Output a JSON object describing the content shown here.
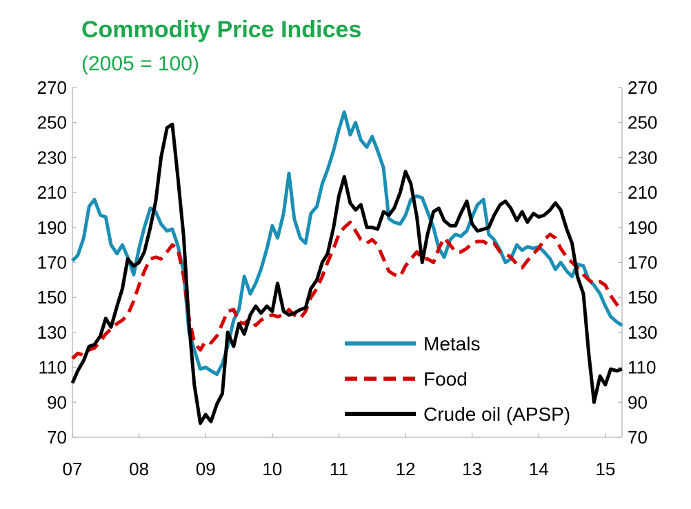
{
  "chart_data": {
    "type": "line",
    "title": "Commodity Price Indices",
    "subtitle": "(2005 = 100)",
    "ylim": [
      70,
      270
    ],
    "yticks": [
      70,
      90,
      110,
      130,
      150,
      170,
      190,
      210,
      230,
      250,
      270
    ],
    "xlim": [
      2007.0,
      2015.25
    ],
    "xticks": [
      {
        "value": 2007,
        "label": "07"
      },
      {
        "value": 2008,
        "label": "08"
      },
      {
        "value": 2009,
        "label": "09"
      },
      {
        "value": 2010,
        "label": "10"
      },
      {
        "value": 2011,
        "label": "11"
      },
      {
        "value": 2012,
        "label": "12"
      },
      {
        "value": 2013,
        "label": "13"
      },
      {
        "value": 2014,
        "label": "14"
      },
      {
        "value": 2015,
        "label": "15"
      }
    ],
    "dual_axis": true,
    "grid": false,
    "legend_position": "bottom-right",
    "series": [
      {
        "name": "Metals",
        "color": "#1b8fb5",
        "style": "solid",
        "x": [
          2007.0,
          2007.08,
          2007.17,
          2007.25,
          2007.33,
          2007.42,
          2007.5,
          2007.58,
          2007.67,
          2007.75,
          2007.83,
          2007.92,
          2008.0,
          2008.08,
          2008.17,
          2008.25,
          2008.33,
          2008.42,
          2008.5,
          2008.58,
          2008.67,
          2008.75,
          2008.83,
          2008.92,
          2009.0,
          2009.08,
          2009.17,
          2009.25,
          2009.33,
          2009.42,
          2009.5,
          2009.58,
          2009.67,
          2009.75,
          2009.83,
          2009.92,
          2010.0,
          2010.08,
          2010.17,
          2010.25,
          2010.33,
          2010.42,
          2010.5,
          2010.58,
          2010.67,
          2010.75,
          2010.83,
          2010.92,
          2011.0,
          2011.08,
          2011.17,
          2011.25,
          2011.33,
          2011.42,
          2011.5,
          2011.58,
          2011.67,
          2011.75,
          2011.83,
          2011.92,
          2012.0,
          2012.08,
          2012.17,
          2012.25,
          2012.33,
          2012.42,
          2012.5,
          2012.58,
          2012.67,
          2012.75,
          2012.83,
          2012.92,
          2013.0,
          2013.08,
          2013.17,
          2013.25,
          2013.33,
          2013.42,
          2013.5,
          2013.58,
          2013.67,
          2013.75,
          2013.83,
          2013.92,
          2014.0,
          2014.08,
          2014.17,
          2014.25,
          2014.33,
          2014.42,
          2014.5,
          2014.58,
          2014.67,
          2014.75,
          2014.83,
          2014.92,
          2015.0,
          2015.08,
          2015.17,
          2015.25
        ],
        "values": [
          171,
          174,
          184,
          202,
          206,
          197,
          196,
          180,
          175,
          180,
          173,
          163,
          178,
          190,
          201,
          199,
          192,
          188,
          189,
          180,
          165,
          130,
          120,
          109,
          110,
          108,
          106,
          112,
          122,
          137,
          143,
          162,
          152,
          158,
          166,
          178,
          191,
          184,
          198,
          221,
          195,
          184,
          181,
          198,
          202,
          215,
          223,
          234,
          246,
          256,
          243,
          250,
          240,
          236,
          242,
          234,
          224,
          195,
          193,
          192,
          197,
          206,
          208,
          207,
          199,
          190,
          178,
          173,
          183,
          186,
          185,
          188,
          196,
          203,
          206,
          186,
          183,
          177,
          170,
          172,
          180,
          177,
          179,
          178,
          179,
          176,
          172,
          166,
          170,
          165,
          162,
          169,
          168,
          160,
          157,
          152,
          145,
          139,
          136,
          134
        ]
      },
      {
        "name": "Food",
        "color": "#d40000",
        "style": "dashed",
        "x": [
          2007.0,
          2007.08,
          2007.17,
          2007.25,
          2007.33,
          2007.42,
          2007.5,
          2007.58,
          2007.67,
          2007.75,
          2007.83,
          2007.92,
          2008.0,
          2008.08,
          2008.17,
          2008.25,
          2008.33,
          2008.42,
          2008.5,
          2008.58,
          2008.67,
          2008.75,
          2008.83,
          2008.92,
          2009.0,
          2009.08,
          2009.17,
          2009.25,
          2009.33,
          2009.42,
          2009.5,
          2009.58,
          2009.67,
          2009.75,
          2009.83,
          2009.92,
          2010.0,
          2010.08,
          2010.17,
          2010.25,
          2010.33,
          2010.42,
          2010.5,
          2010.58,
          2010.67,
          2010.75,
          2010.83,
          2010.92,
          2011.0,
          2011.08,
          2011.17,
          2011.25,
          2011.33,
          2011.42,
          2011.5,
          2011.58,
          2011.67,
          2011.75,
          2011.83,
          2011.92,
          2012.0,
          2012.08,
          2012.17,
          2012.25,
          2012.33,
          2012.42,
          2012.5,
          2012.58,
          2012.67,
          2012.75,
          2012.83,
          2012.92,
          2013.0,
          2013.08,
          2013.17,
          2013.25,
          2013.33,
          2013.42,
          2013.5,
          2013.58,
          2013.67,
          2013.75,
          2013.83,
          2013.92,
          2014.0,
          2014.08,
          2014.17,
          2014.25,
          2014.33,
          2014.42,
          2014.5,
          2014.58,
          2014.67,
          2014.75,
          2014.83,
          2014.92,
          2015.0,
          2015.08,
          2015.17,
          2015.25
        ],
        "values": [
          115,
          118,
          117,
          120,
          121,
          125,
          129,
          132,
          135,
          137,
          140,
          148,
          157,
          165,
          172,
          173,
          172,
          176,
          180,
          178,
          162,
          138,
          124,
          120,
          125,
          124,
          128,
          135,
          142,
          143,
          136,
          135,
          138,
          134,
          137,
          139,
          140,
          139,
          140,
          143,
          140,
          138,
          142,
          150,
          155,
          162,
          170,
          178,
          186,
          190,
          193,
          188,
          183,
          181,
          183,
          180,
          172,
          165,
          163,
          162,
          168,
          172,
          176,
          172,
          172,
          170,
          178,
          184,
          180,
          176,
          176,
          178,
          181,
          182,
          182,
          180,
          181,
          176,
          175,
          173,
          169,
          167,
          171,
          175,
          178,
          183,
          186,
          184,
          178,
          173,
          170,
          167,
          163,
          160,
          158,
          159,
          157,
          151,
          146,
          143
        ]
      },
      {
        "name": "Crude oil (APSP)",
        "color": "#000000",
        "style": "solid",
        "x": [
          2007.0,
          2007.08,
          2007.17,
          2007.25,
          2007.33,
          2007.42,
          2007.5,
          2007.58,
          2007.67,
          2007.75,
          2007.83,
          2007.92,
          2008.0,
          2008.08,
          2008.17,
          2008.25,
          2008.33,
          2008.42,
          2008.5,
          2008.58,
          2008.67,
          2008.75,
          2008.83,
          2008.92,
          2009.0,
          2009.08,
          2009.17,
          2009.25,
          2009.33,
          2009.42,
          2009.5,
          2009.58,
          2009.67,
          2009.75,
          2009.83,
          2009.92,
          2010.0,
          2010.08,
          2010.17,
          2010.25,
          2010.33,
          2010.42,
          2010.5,
          2010.58,
          2010.67,
          2010.75,
          2010.83,
          2010.92,
          2011.0,
          2011.08,
          2011.17,
          2011.25,
          2011.33,
          2011.42,
          2011.5,
          2011.58,
          2011.67,
          2011.75,
          2011.83,
          2011.92,
          2012.0,
          2012.08,
          2012.17,
          2012.25,
          2012.33,
          2012.42,
          2012.5,
          2012.58,
          2012.67,
          2012.75,
          2012.83,
          2012.92,
          2013.0,
          2013.08,
          2013.17,
          2013.25,
          2013.33,
          2013.42,
          2013.5,
          2013.58,
          2013.67,
          2013.75,
          2013.83,
          2013.92,
          2014.0,
          2014.08,
          2014.17,
          2014.25,
          2014.33,
          2014.42,
          2014.5,
          2014.58,
          2014.67,
          2014.75,
          2014.83,
          2014.92,
          2015.0,
          2015.08,
          2015.17,
          2015.25
        ],
        "values": [
          101,
          108,
          114,
          122,
          123,
          128,
          138,
          133,
          145,
          155,
          172,
          168,
          170,
          176,
          190,
          205,
          230,
          247,
          249,
          220,
          185,
          135,
          100,
          78,
          83,
          79,
          89,
          95,
          130,
          122,
          135,
          129,
          140,
          145,
          141,
          145,
          142,
          158,
          142,
          140,
          141,
          143,
          144,
          155,
          160,
          170,
          175,
          190,
          208,
          219,
          204,
          200,
          203,
          190,
          190,
          189,
          199,
          197,
          201,
          210,
          222,
          215,
          196,
          170,
          186,
          199,
          201,
          194,
          191,
          191,
          198,
          205,
          192,
          188,
          189,
          190,
          197,
          203,
          205,
          201,
          194,
          199,
          193,
          198,
          196,
          197,
          200,
          204,
          200,
          189,
          181,
          162,
          152,
          118,
          90,
          105,
          100,
          109,
          108,
          109
        ]
      }
    ]
  }
}
